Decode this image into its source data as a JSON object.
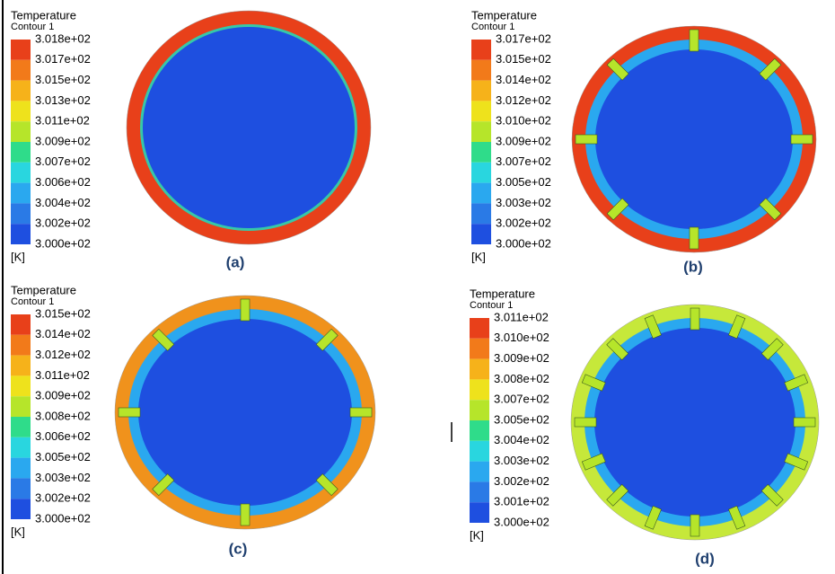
{
  "panels": [
    {
      "legend": {
        "title": "Temperature",
        "subtitle": "Contour 1",
        "labels": [
          "3.018e+02",
          "3.017e+02",
          "3.015e+02",
          "3.013e+02",
          "3.011e+02",
          "3.009e+02",
          "3.007e+02",
          "3.006e+02",
          "3.004e+02",
          "3.002e+02",
          "3.000e+02"
        ],
        "unit": "[K]"
      },
      "caption": "(a)"
    },
    {
      "legend": {
        "title": "Temperature",
        "subtitle": "Contour 1",
        "labels": [
          "3.017e+02",
          "3.015e+02",
          "3.014e+02",
          "3.012e+02",
          "3.010e+02",
          "3.009e+02",
          "3.007e+02",
          "3.005e+02",
          "3.003e+02",
          "3.002e+02",
          "3.000e+02"
        ],
        "unit": "[K]"
      },
      "caption": "(b)"
    },
    {
      "legend": {
        "title": "Temperature",
        "subtitle": "Contour 1",
        "labels": [
          "3.015e+02",
          "3.014e+02",
          "3.012e+02",
          "3.011e+02",
          "3.009e+02",
          "3.008e+02",
          "3.006e+02",
          "3.005e+02",
          "3.003e+02",
          "3.002e+02",
          "3.000e+02"
        ],
        "unit": "[K]"
      },
      "caption": "(c)"
    },
    {
      "legend": {
        "title": "Temperature",
        "subtitle": "Contour 1",
        "labels": [
          "3.011e+02",
          "3.010e+02",
          "3.009e+02",
          "3.008e+02",
          "3.007e+02",
          "3.005e+02",
          "3.004e+02",
          "3.003e+02",
          "3.002e+02",
          "3.001e+02",
          "3.000e+02"
        ],
        "unit": "[K]"
      },
      "caption": "(d)"
    }
  ]
}
